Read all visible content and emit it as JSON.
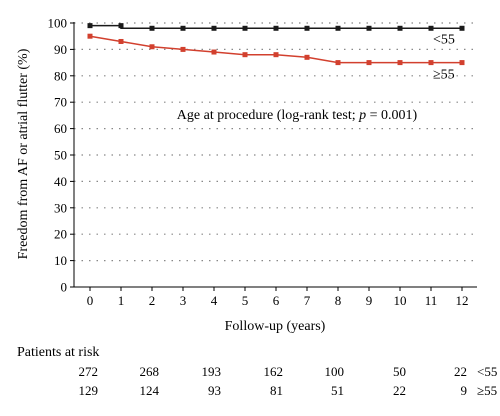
{
  "chart_data": {
    "type": "line",
    "title": "",
    "xlabel": "Follow-up (years)",
    "ylabel": "Freedom from AF or atrial flutter (%)",
    "xlim": [
      0,
      12
    ],
    "ylim": [
      0,
      100
    ],
    "x_ticks": [
      0,
      1,
      2,
      3,
      4,
      5,
      6,
      7,
      8,
      9,
      10,
      11,
      12
    ],
    "y_ticks": [
      0,
      10,
      20,
      30,
      40,
      50,
      60,
      70,
      80,
      90,
      100
    ],
    "grid": "horizontal dotted",
    "annotation": {
      "prefix": "Age at procedure (log-rank test; ",
      "var": "p",
      "suffix": " = 0.001)"
    },
    "series": [
      {
        "name": "<55",
        "color": "#1a1a1a",
        "x": [
          0,
          1,
          1,
          2,
          3,
          4,
          5,
          6,
          7,
          8,
          9,
          10,
          11,
          12
        ],
        "y": [
          99,
          99,
          98,
          98,
          98,
          98,
          98,
          98,
          98,
          98,
          98,
          98,
          98,
          98
        ],
        "markers_x": [
          0,
          1,
          2,
          3,
          4,
          5,
          6,
          7,
          8,
          9,
          10,
          11,
          12
        ],
        "markers_y": [
          99,
          99,
          98,
          98,
          98,
          98,
          98,
          98,
          98,
          98,
          98,
          98,
          98
        ]
      },
      {
        "name": "≥55",
        "color": "#d2402e",
        "x": [
          0,
          1,
          2,
          3,
          4,
          5,
          6,
          7,
          8,
          9,
          10,
          11,
          12
        ],
        "y": [
          95,
          93,
          91,
          90,
          89,
          88,
          88,
          87,
          85,
          85,
          85,
          85,
          85
        ],
        "markers_x": [
          0,
          1,
          2,
          3,
          4,
          5,
          6,
          7,
          8,
          9,
          10,
          11,
          12
        ],
        "markers_y": [
          95,
          93,
          91,
          90,
          89,
          88,
          88,
          87,
          85,
          85,
          85,
          85,
          85
        ]
      }
    ],
    "risk_table": {
      "title": "Patients at risk",
      "rows": [
        {
          "label": "<55",
          "values": [
            272,
            268,
            193,
            162,
            100,
            50,
            22
          ]
        },
        {
          "label": "≥55",
          "values": [
            129,
            124,
            93,
            81,
            51,
            22,
            9
          ]
        }
      ]
    }
  }
}
